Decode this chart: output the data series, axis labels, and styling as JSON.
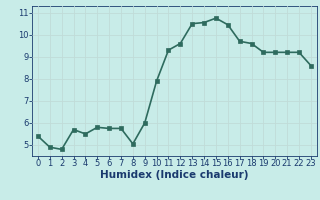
{
  "x": [
    0,
    1,
    2,
    3,
    4,
    5,
    6,
    7,
    8,
    9,
    10,
    11,
    12,
    13,
    14,
    15,
    16,
    17,
    18,
    19,
    20,
    21,
    22,
    23
  ],
  "y": [
    5.4,
    4.9,
    4.8,
    5.7,
    5.5,
    5.8,
    5.75,
    5.75,
    5.05,
    6.0,
    7.9,
    9.3,
    9.6,
    10.5,
    10.55,
    10.75,
    10.45,
    9.7,
    9.6,
    9.2,
    9.2,
    9.2,
    9.2,
    8.6
  ],
  "line_color": "#2e6b5e",
  "marker_color": "#2e6b5e",
  "bg_color": "#c8ece8",
  "grid_color": "#c0dcd8",
  "xlabel": "Humidex (Indice chaleur)",
  "xlabel_color": "#1a3a6e",
  "ylim": [
    4.5,
    11.3
  ],
  "xlim": [
    -0.5,
    23.5
  ],
  "yticks": [
    5,
    6,
    7,
    8,
    9,
    10,
    11
  ],
  "xticks": [
    0,
    1,
    2,
    3,
    4,
    5,
    6,
    7,
    8,
    9,
    10,
    11,
    12,
    13,
    14,
    15,
    16,
    17,
    18,
    19,
    20,
    21,
    22,
    23
  ],
  "tick_label_color": "#1a3a6e",
  "font_size_ticks": 6.0,
  "font_size_xlabel": 7.5,
  "line_width": 1.2,
  "marker_size": 2.5
}
